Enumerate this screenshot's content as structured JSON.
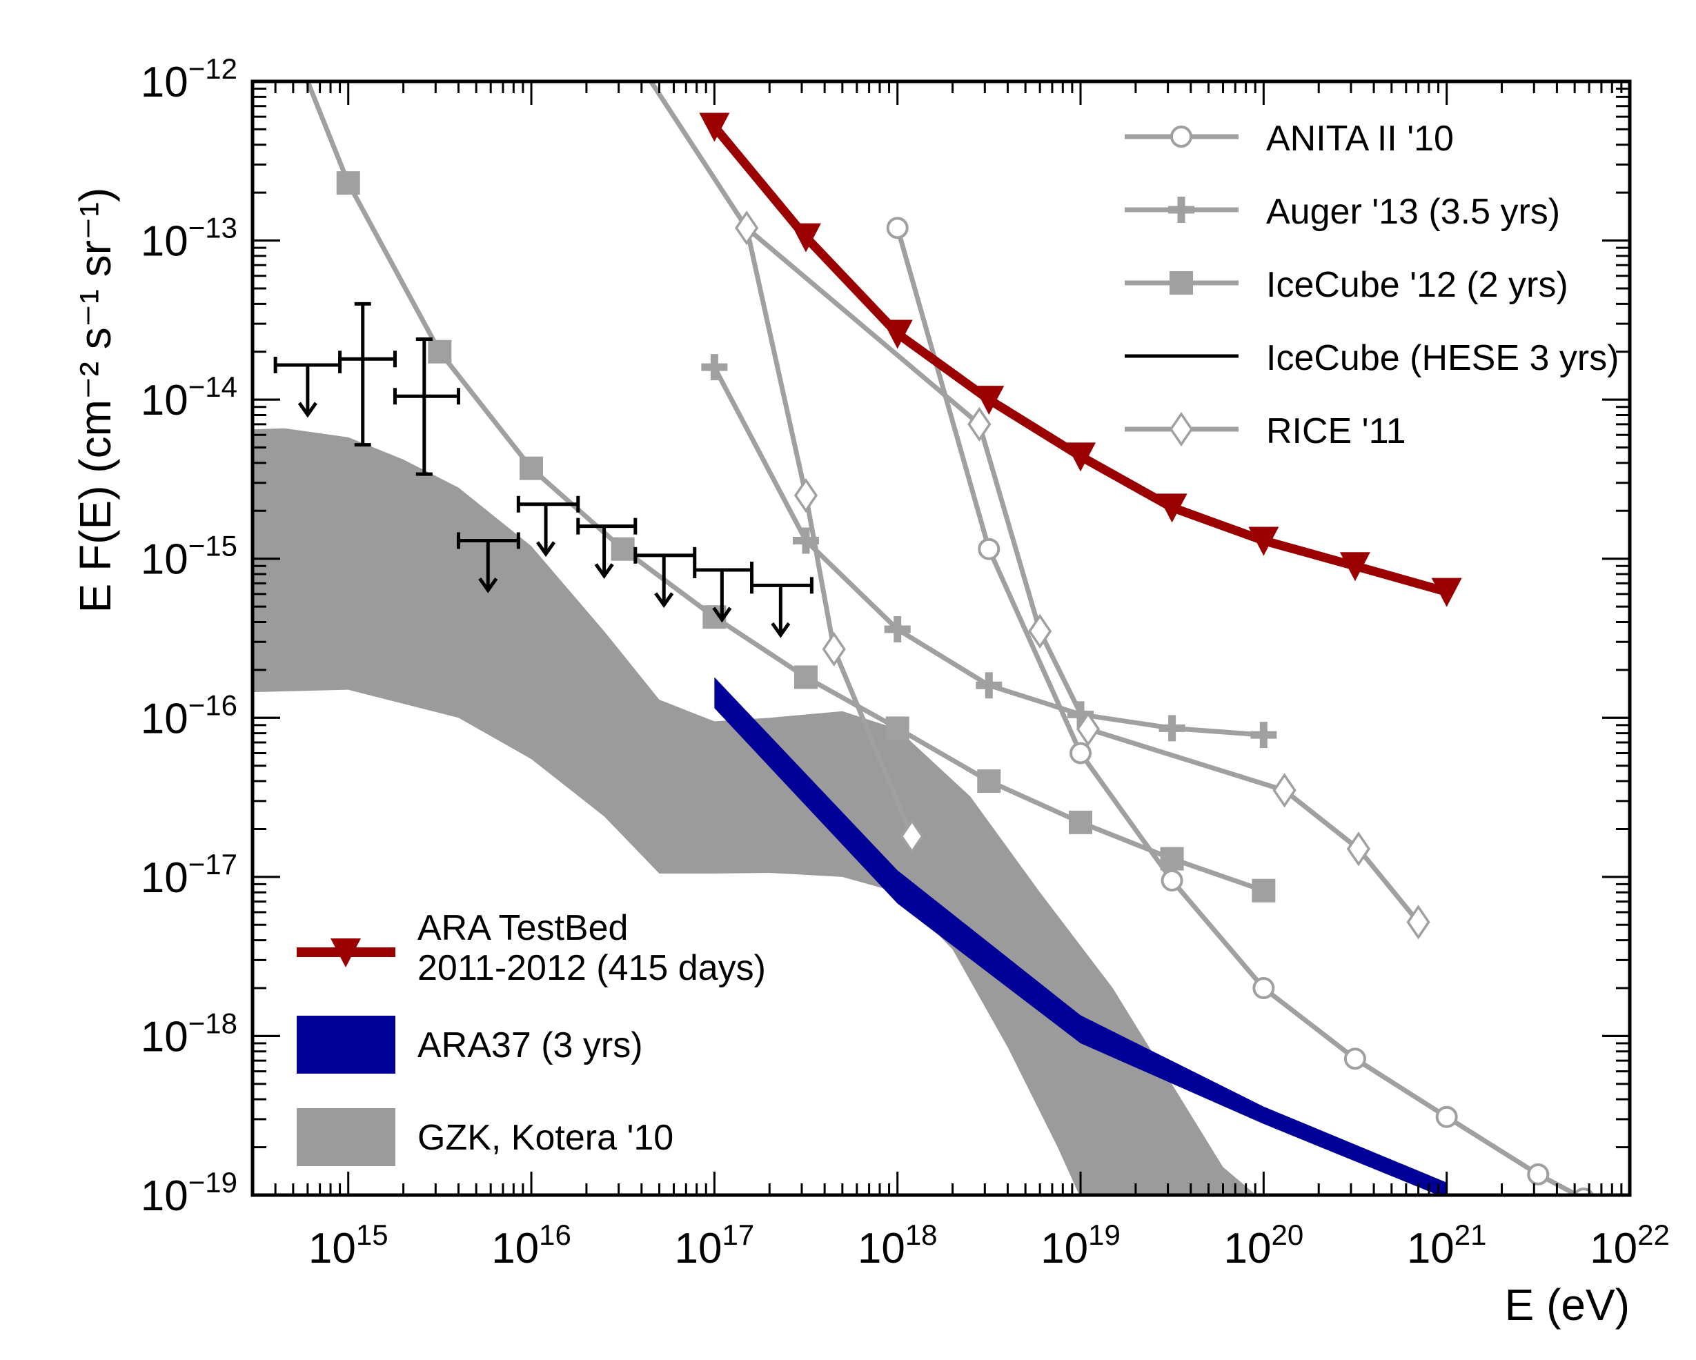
{
  "chart_data": {
    "type": "line",
    "title": "",
    "xlabel": "E (eV)",
    "ylabel": "E F(E) (cm⁻² s⁻¹ sr⁻¹)",
    "xscale": "log",
    "yscale": "log",
    "xlim": [
      300000000000000.0,
      1e+22
    ],
    "ylim": [
      1e-19,
      1e-12
    ],
    "x_ticks": [
      1000000000000000.0,
      1e+16,
      1e+17,
      1e+18,
      1e+19,
      1e+20,
      1e+21,
      1e+22
    ],
    "y_ticks": [
      1e-19,
      1e-18,
      1e-17,
      1e-16,
      1e-15,
      1e-14,
      1e-13,
      1e-12
    ],
    "x_tick_labels": [
      {
        "base": "10",
        "exp": "15"
      },
      {
        "base": "10",
        "exp": "16"
      },
      {
        "base": "10",
        "exp": "17"
      },
      {
        "base": "10",
        "exp": "18"
      },
      {
        "base": "10",
        "exp": "19"
      },
      {
        "base": "10",
        "exp": "20"
      },
      {
        "base": "10",
        "exp": "21"
      },
      {
        "base": "10",
        "exp": "22"
      }
    ],
    "y_tick_labels": [
      {
        "base": "10",
        "exp": "−19"
      },
      {
        "base": "10",
        "exp": "−18"
      },
      {
        "base": "10",
        "exp": "−17"
      },
      {
        "base": "10",
        "exp": "−16"
      },
      {
        "base": "10",
        "exp": "−15"
      },
      {
        "base": "10",
        "exp": "−14"
      },
      {
        "base": "10",
        "exp": "−13"
      },
      {
        "base": "10",
        "exp": "−12"
      }
    ],
    "grid": false,
    "legends": [
      {
        "placement": "top-right",
        "entries": [
          "ANITA II '10",
          "Auger '13 (3.5 yrs)",
          "IceCube '12 (2 yrs)",
          "IceCube (HESE 3 yrs)",
          "RICE '11"
        ]
      },
      {
        "placement": "bottom-left",
        "entries": [
          "ARA TestBed 2011-2012 (415 days)",
          "ARA37 (3 yrs)",
          "GZK, Kotera '10"
        ]
      }
    ],
    "series": [
      {
        "name": "ANITA II '10",
        "style": "line",
        "marker": "circle-open",
        "color": "#a0a0a0",
        "x": [
          1e+18,
          3.16e+18,
          1e+19,
          3.16e+19,
          1e+20,
          3.16e+20,
          1e+21,
          3.16e+21,
          5.6e+21
        ],
        "y": [
          1.2e-13,
          1.15e-15,
          6e-17,
          9.5e-18,
          2e-18,
          7.2e-19,
          3.1e-19,
          1.35e-19,
          9.5e-20
        ]
      },
      {
        "name": "Auger '13 (3.5 yrs)",
        "style": "line",
        "marker": "plus",
        "color": "#a0a0a0",
        "x": [
          1e+17,
          3.16e+17,
          1e+18,
          3.16e+18,
          1e+19,
          3.16e+19,
          1e+20
        ],
        "y": [
          1.6e-14,
          1.3e-15,
          3.6e-16,
          1.6e-16,
          1.05e-16,
          8.6e-17,
          7.8e-17
        ]
      },
      {
        "name": "IceCube '12 (2 yrs)",
        "style": "line",
        "marker": "square",
        "color": "#a0a0a0",
        "x": [
          600000000000000.0,
          1000000000000000.0,
          3160000000000000.0,
          1e+16,
          3.16e+16,
          1e+17,
          3.16e+17,
          1e+18,
          3.16e+18,
          1e+19,
          3.16e+19,
          1e+20
        ],
        "y": [
          1e-12,
          2.3e-13,
          2e-14,
          3.7e-15,
          1.15e-15,
          4.3e-16,
          1.8e-16,
          8.6e-17,
          4e-17,
          2.2e-17,
          1.3e-17,
          8.2e-18
        ]
      },
      {
        "name": "RICE '11",
        "style": "line",
        "marker": "diamond-open",
        "color": "#a0a0a0",
        "x": [
          4.5e+16,
          1.5e+17,
          3.16e+17,
          4.5e+17,
          1.2e+18,
          2.8e+18,
          6e+18,
          1.1e+19,
          1.3e+20,
          3.3e+20,
          7e+20
        ],
        "y": [
          1e-12,
          1.2e-13,
          2.5e-15,
          2.7e-16,
          1.8e-17,
          7e-15,
          3.5e-16,
          8.5e-17,
          3.5e-17,
          1.5e-17,
          5.2e-18
        ]
      },
      {
        "name": "ARA TestBed 2011-2012 (415 days)",
        "style": "thick-line",
        "marker": "triangle-down",
        "color": "#9b0000",
        "x": [
          1e+17,
          3.16e+17,
          1e+18,
          3.16e+18,
          1e+19,
          3.16e+19,
          1e+20,
          3.16e+20,
          1e+21
        ],
        "y": [
          5.2e-13,
          1.05e-13,
          2.6e-14,
          1e-14,
          4.4e-15,
          2.1e-15,
          1.3e-15,
          9e-16,
          6.2e-16
        ]
      },
      {
        "name": "IceCube (HESE 3 yrs)",
        "style": "errorbars",
        "color": "#000000",
        "points": [
          {
            "x": 600000000000000.0,
            "xlo": 400000000000000.0,
            "xhi": 900000000000000.0,
            "y": 1.65e-14,
            "upper_limit": true
          },
          {
            "x": 1200000000000000.0,
            "xlo": 900000000000000.0,
            "xhi": 1800000000000000.0,
            "y": 1.8e-14,
            "ylo": 5.2e-15,
            "yhi": 4e-14
          },
          {
            "x": 2600000000000000.0,
            "xlo": 1800000000000000.0,
            "xhi": 4000000000000000.0,
            "y": 1.05e-14,
            "ylo": 3.4e-15,
            "yhi": 2.4e-14
          },
          {
            "x": 5800000000000000.0,
            "xlo": 4000000000000000.0,
            "xhi": 8500000000000000.0,
            "y": 1.3e-15,
            "upper_limit": true
          },
          {
            "x": 1.2e+16,
            "xlo": 8500000000000000.0,
            "xhi": 1.8e+16,
            "y": 2.2e-15,
            "upper_limit": true
          },
          {
            "x": 2.5e+16,
            "xlo": 1.8e+16,
            "xhi": 3.7e+16,
            "y": 1.6e-15,
            "upper_limit": true
          },
          {
            "x": 5.3e+16,
            "xlo": 3.7e+16,
            "xhi": 7.8e+16,
            "y": 1.05e-15,
            "upper_limit": true
          },
          {
            "x": 1.1e+17,
            "xlo": 7.8e+16,
            "xhi": 1.6e+17,
            "y": 8.5e-16,
            "upper_limit": true
          },
          {
            "x": 2.3e+17,
            "xlo": 1.6e+17,
            "xhi": 3.4e+17,
            "y": 6.8e-16,
            "upper_limit": true
          }
        ]
      },
      {
        "name": "ARA37 (3 yrs)",
        "style": "band",
        "color": "#000099",
        "x": [
          1e+17,
          1e+18,
          1e+19,
          1e+20,
          1e+21
        ],
        "upper": [
          1.8e-16,
          1.1e-17,
          1.35e-18,
          3.6e-19,
          1.2e-19
        ],
        "lower": [
          1.15e-16,
          6.8e-18,
          9e-19,
          2.8e-19,
          9.5e-20
        ]
      },
      {
        "name": "GZK, Kotera '10",
        "style": "band",
        "color": "#9b9b9b",
        "upper_x": [
          300000000000000.0,
          450000000000000.0,
          1000000000000000.0,
          2000000000000000.0,
          4000000000000000.0,
          1e+16,
          2.5e+16,
          5e+16,
          1e+17,
          2e+17,
          5e+17,
          1e+18,
          2.5e+18,
          6e+18,
          1.5e+19,
          4e+19,
          6e+19,
          9.5e+19
        ],
        "upper_y": [
          6.5e-15,
          6.6e-15,
          5.8e-15,
          4.2e-15,
          2.8e-15,
          1.2e-15,
          3.5e-16,
          1.3e-16,
          9.5e-17,
          1e-16,
          1.1e-16,
          8.5e-17,
          3.2e-17,
          8e-18,
          2e-18,
          3.2e-19,
          1.5e-19,
          9.6e-20
        ],
        "lower_x": [
          300000000000000.0,
          1000000000000000.0,
          4000000000000000.0,
          1e+16,
          2.5e+16,
          5e+16,
          1e+17,
          2e+17,
          5e+17,
          1e+18,
          2e+18,
          4e+18,
          7.5e+18,
          1e+19
        ],
        "lower_y": [
          1.45e-16,
          1.5e-16,
          1e-16,
          5.5e-17,
          2.4e-17,
          1.05e-17,
          1.05e-17,
          1.06e-17,
          1e-17,
          8e-18,
          3.5e-18,
          8.5e-19,
          2e-19,
          9.6e-20
        ]
      }
    ]
  }
}
